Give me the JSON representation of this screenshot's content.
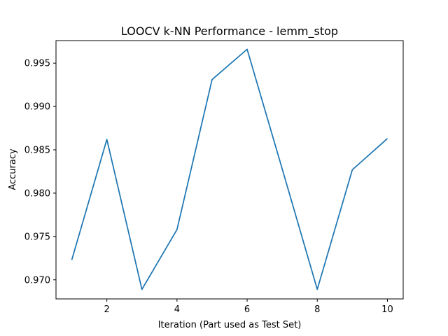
{
  "chart_data": {
    "type": "line",
    "title": "LOOCV k-NN Performance - lemm_stop",
    "xlabel": "Iteration (Part used as Test Set)",
    "ylabel": "Accuracy",
    "xlim": [
      0.55,
      10.45
    ],
    "ylim": [
      0.9678,
      0.9976
    ],
    "x_ticks": [
      2,
      4,
      6,
      8,
      10
    ],
    "y_ticks": [
      0.97,
      0.975,
      0.98,
      0.985,
      0.99,
      0.995
    ],
    "x_tick_labels": [
      "2",
      "4",
      "6",
      "8",
      "10"
    ],
    "y_tick_labels": [
      "0.970",
      "0.975",
      "0.980",
      "0.985",
      "0.990",
      "0.995"
    ],
    "grid": false,
    "line_color": "#1f77b4",
    "x": [
      1,
      2,
      3,
      4,
      5,
      6,
      7,
      8,
      9,
      10
    ],
    "values": [
      0.9723,
      0.9862,
      0.9689,
      0.9758,
      0.9931,
      0.9966,
      0.9828,
      0.9689,
      0.9827,
      0.9863
    ]
  }
}
